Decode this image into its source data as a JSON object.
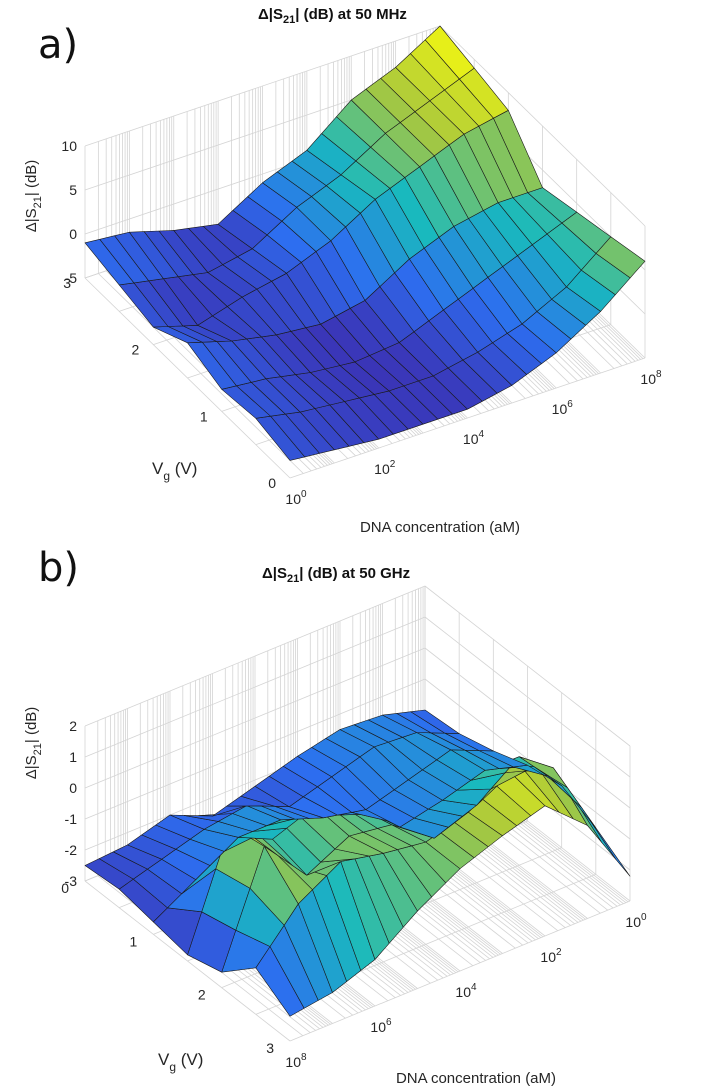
{
  "chart_data": [
    {
      "type": "surface",
      "panel_label": "a)",
      "title_prefix": "Δ|S",
      "title_sub": "21",
      "title_suffix": "| (dB) at 50 MHz",
      "zlabel_prefix": "Δ|S",
      "zlabel_sub": "21",
      "zlabel_suffix": "| (dB)",
      "ylabel_main": "V",
      "ylabel_sub": "g",
      "ylabel_suffix": " (V)",
      "xlabel": "DNA concentration (aM)",
      "x_scale": "log",
      "x_ticks": [
        "10^0",
        "10^2",
        "10^4",
        "10^6",
        "10^8"
      ],
      "y_ticks": [
        "0",
        "1",
        "2",
        "3"
      ],
      "z_ticks": [
        "10",
        "5",
        "0",
        "-5"
      ],
      "zlim": [
        -5,
        10
      ],
      "x_log": [
        0,
        1,
        2,
        3,
        4,
        5,
        6,
        7,
        8
      ],
      "vg": [
        0,
        0.5,
        1,
        1.5,
        2,
        2.5,
        3
      ],
      "z": [
        [
          -3,
          -3.5,
          -4,
          -4,
          -4,
          -3,
          -1,
          2,
          6
        ],
        [
          -2,
          -3,
          -3.5,
          -4,
          -4,
          -3,
          -1.5,
          1,
          5
        ],
        [
          -2.5,
          -3,
          -4,
          -4.5,
          -4,
          -2,
          0,
          2,
          4
        ],
        [
          -1,
          -2.5,
          -3.5,
          -4,
          -3,
          0,
          2,
          3,
          3
        ],
        [
          -3,
          -4.5,
          -3,
          -2,
          0,
          3,
          5,
          7,
          8
        ],
        [
          -2,
          -3,
          -4,
          -3,
          0,
          2,
          5,
          7,
          9
        ],
        [
          -1,
          -1.5,
          -3,
          -4,
          -1,
          1,
          5,
          7,
          10
        ]
      ]
    },
    {
      "type": "surface",
      "panel_label": "b)",
      "title_prefix": "Δ|S",
      "title_sub": "21",
      "title_suffix": "| (dB) at 50 GHz",
      "zlabel_prefix": "Δ|S",
      "zlabel_sub": "21",
      "zlabel_suffix": "| (dB)",
      "ylabel_main": "V",
      "ylabel_sub": "g",
      "ylabel_suffix": " (V)",
      "xlabel": "DNA concentration (aM)",
      "x_scale": "log",
      "x_ticks": [
        "10^8",
        "10^6",
        "10^4",
        "10^2",
        "10^0"
      ],
      "y_ticks": [
        "0",
        "1",
        "2",
        "3"
      ],
      "z_ticks": [
        "2",
        "1",
        "0",
        "-1",
        "-2",
        "-3"
      ],
      "zlim": [
        -3,
        2
      ],
      "x_log": [
        8,
        7,
        6,
        5,
        4,
        3,
        2,
        1,
        0
      ],
      "vg": [
        0,
        0.5,
        1,
        1.5,
        2,
        2.5,
        3
      ],
      "z": [
        [
          -2.2,
          -2.0,
          -1.5,
          -0.5,
          0.3,
          0.8,
          1.2,
          0.0,
          -2.2
        ],
        [
          -1.5,
          0.0,
          0.8,
          0.5,
          0.3,
          0.7,
          1.4,
          1.0,
          -1.5
        ],
        [
          -2.5,
          1.0,
          -0.5,
          0.2,
          0.0,
          -1.0,
          -0.5,
          0.5,
          -1.0
        ],
        [
          -2.8,
          0.8,
          -0.2,
          0.3,
          -0.3,
          -1.5,
          -1.2,
          -0.8,
          -1.2
        ],
        [
          -2.6,
          -1.8,
          -1.0,
          -1.0,
          -1.5,
          -1.8,
          -1.4,
          -1.0,
          -1.6
        ],
        [
          -2.4,
          -2.0,
          -1.6,
          -1.4,
          -2.0,
          -1.6,
          -1.2,
          -1.3,
          -1.9
        ],
        [
          -2.5,
          -2.4,
          -2.0,
          -2.6,
          -2.2,
          -1.8,
          -1.5,
          -1.6,
          -2.0
        ]
      ]
    }
  ]
}
